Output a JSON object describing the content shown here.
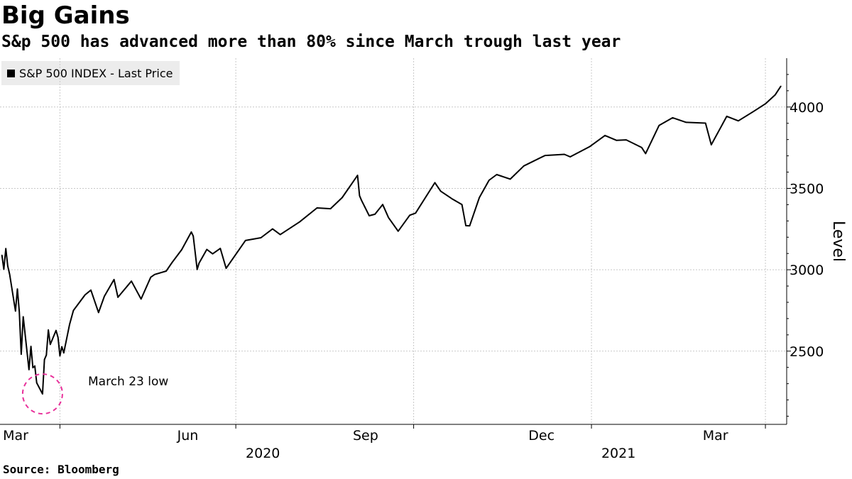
{
  "header": {
    "title": "Big Gains",
    "subtitle": "S&p 500 has advanced more than 80% since March trough last year"
  },
  "legend": {
    "label": "S&P 500 INDEX - Last Price",
    "color": "#000000"
  },
  "footer": {
    "source": "Source: Bloomberg"
  },
  "annotation": {
    "text": "March 23 low",
    "circle_color": "#e8309a",
    "date": "2020-03-23",
    "value": 2237
  },
  "chart_data": {
    "type": "line",
    "ylabel": "Level",
    "xlabel": "",
    "ylim": [
      2050,
      4300
    ],
    "xlim": [
      "2020-03-01",
      "2021-04-12"
    ],
    "yticks": [
      2500,
      3000,
      3500,
      4000
    ],
    "x_month_ticks": [
      {
        "label": "Mar",
        "date": "2020-03-01"
      },
      {
        "label": "Jun",
        "date": "2020-06-01"
      },
      {
        "label": "Sep",
        "date": "2020-09-01"
      },
      {
        "label": "Dec",
        "date": "2020-12-01"
      },
      {
        "label": "Mar",
        "date": "2021-03-01"
      }
    ],
    "x_year_labels": [
      {
        "label": "2020",
        "date": "2020-07-15"
      },
      {
        "label": "2021",
        "date": "2021-01-15"
      }
    ],
    "x_gridlines": [
      "2020-04-01",
      "2020-07-01",
      "2020-10-01",
      "2021-01-01",
      "2021-04-01"
    ],
    "grid": true,
    "legend_position": "top-left",
    "series": [
      {
        "name": "S&P 500 INDEX - Last Price",
        "color": "#000000",
        "x": [
          "2020-03-02",
          "2020-03-03",
          "2020-03-04",
          "2020-03-05",
          "2020-03-06",
          "2020-03-09",
          "2020-03-10",
          "2020-03-11",
          "2020-03-12",
          "2020-03-13",
          "2020-03-16",
          "2020-03-17",
          "2020-03-18",
          "2020-03-19",
          "2020-03-20",
          "2020-03-23",
          "2020-03-24",
          "2020-03-25",
          "2020-03-26",
          "2020-03-27",
          "2020-03-30",
          "2020-03-31",
          "2020-04-01",
          "2020-04-02",
          "2020-04-03",
          "2020-04-06",
          "2020-04-08",
          "2020-04-14",
          "2020-04-17",
          "2020-04-21",
          "2020-04-24",
          "2020-04-29",
          "2020-05-01",
          "2020-05-08",
          "2020-05-13",
          "2020-05-18",
          "2020-05-20",
          "2020-05-26",
          "2020-05-29",
          "2020-06-03",
          "2020-06-08",
          "2020-06-09",
          "2020-06-11",
          "2020-06-12",
          "2020-06-16",
          "2020-06-19",
          "2020-06-23",
          "2020-06-26",
          "2020-07-06",
          "2020-07-14",
          "2020-07-20",
          "2020-07-24",
          "2020-08-03",
          "2020-08-12",
          "2020-08-19",
          "2020-08-25",
          "2020-09-02",
          "2020-09-03",
          "2020-09-04",
          "2020-09-08",
          "2020-09-11",
          "2020-09-15",
          "2020-09-18",
          "2020-09-23",
          "2020-09-29",
          "2020-10-02",
          "2020-10-12",
          "2020-10-15",
          "2020-10-21",
          "2020-10-26",
          "2020-10-28",
          "2020-10-30",
          "2020-11-04",
          "2020-11-09",
          "2020-11-13",
          "2020-11-20",
          "2020-11-27",
          "2020-12-08",
          "2020-12-18",
          "2020-12-21",
          "2020-12-31",
          "2021-01-08",
          "2021-01-14",
          "2021-01-19",
          "2021-01-27",
          "2021-01-29",
          "2021-02-05",
          "2021-02-12",
          "2021-02-19",
          "2021-03-01",
          "2021-03-04",
          "2021-03-12",
          "2021-03-18",
          "2021-03-26",
          "2021-04-01",
          "2021-04-06",
          "2021-04-09"
        ],
        "values": [
          3090,
          3003,
          3130,
          3023,
          2972,
          2746,
          2882,
          2741,
          2481,
          2711,
          2386,
          2529,
          2398,
          2409,
          2305,
          2237,
          2448,
          2476,
          2630,
          2541,
          2627,
          2585,
          2471,
          2527,
          2489,
          2664,
          2750,
          2846,
          2875,
          2737,
          2837,
          2940,
          2831,
          2930,
          2820,
          2954,
          2971,
          2992,
          3044,
          3123,
          3232,
          3207,
          3002,
          3041,
          3125,
          3098,
          3131,
          3009,
          3180,
          3197,
          3251,
          3216,
          3294,
          3380,
          3375,
          3443,
          3580,
          3455,
          3427,
          3332,
          3341,
          3401,
          3320,
          3237,
          3335,
          3348,
          3535,
          3483,
          3435,
          3401,
          3271,
          3270,
          3443,
          3550,
          3585,
          3557,
          3638,
          3702,
          3709,
          3694,
          3756,
          3825,
          3795,
          3798,
          3751,
          3714,
          3887,
          3934,
          3906,
          3901,
          3768,
          3943,
          3915,
          3974,
          4020,
          4074,
          4128
        ]
      }
    ]
  }
}
